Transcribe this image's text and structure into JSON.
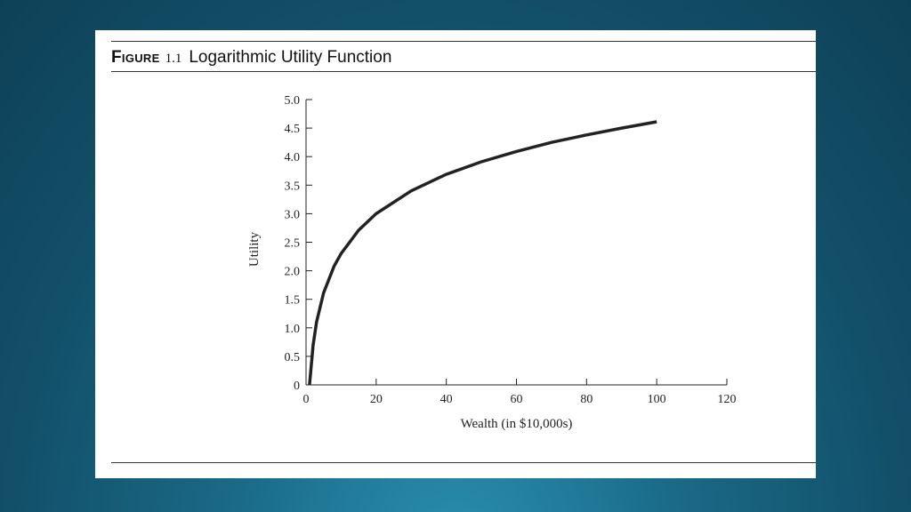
{
  "figure": {
    "label": "Figure",
    "number": "1.1",
    "title": "Logarithmic Utility Function"
  },
  "chart_data": {
    "type": "line",
    "title": "Logarithmic Utility Function",
    "xlabel": "Wealth (in $10,000s)",
    "ylabel": "Utility",
    "xlim": [
      0,
      120
    ],
    "ylim": [
      0,
      5.0
    ],
    "x_ticks": [
      "0",
      "20",
      "40",
      "60",
      "80",
      "100",
      "120"
    ],
    "y_ticks": [
      "0",
      "0.5",
      "1.0",
      "1.5",
      "2.0",
      "2.5",
      "3.0",
      "3.5",
      "4.0",
      "4.5",
      "5.0"
    ],
    "grid": false,
    "series": [
      {
        "function": "ln(x)",
        "x": [
          1,
          2,
          3,
          5,
          8,
          10,
          15,
          20,
          30,
          40,
          50,
          60,
          70,
          80,
          90,
          100
        ],
        "y": [
          0,
          0.69,
          1.1,
          1.61,
          2.08,
          2.3,
          2.71,
          3.0,
          3.4,
          3.69,
          3.91,
          4.09,
          4.25,
          4.38,
          4.5,
          4.61
        ],
        "color": "#222222"
      }
    ]
  },
  "colors": {
    "background": "#1a6a88",
    "panel": "#ffffff",
    "ink": "#222222"
  }
}
